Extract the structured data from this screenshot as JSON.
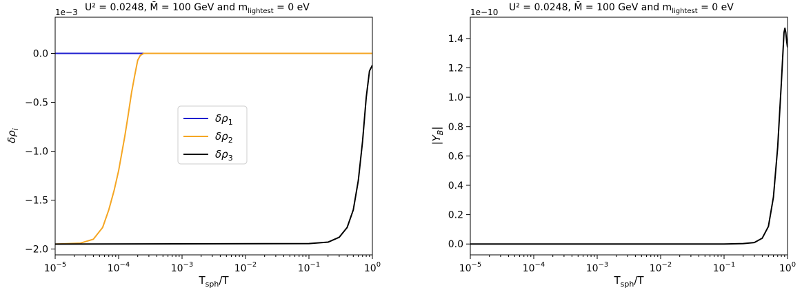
{
  "chart_data": [
    {
      "type": "line",
      "title_prefix": "U² = 0.0248, M̄ = 100 GeV and m",
      "title_sub": "lightest",
      "title_suffix": " = 0 eV",
      "xlabel_main": "T",
      "xlabel_sub": "sph",
      "xlabel_tail": "/T",
      "ylabel_main": "δρ",
      "ylabel_sub": "i",
      "xscale": "log",
      "xlim": [
        1e-05,
        1
      ],
      "ylim": [
        -2.06,
        0.37
      ],
      "x_ticks": [
        {
          "exp": "−5",
          "base": "10"
        },
        {
          "exp": "−4",
          "base": "10"
        },
        {
          "exp": "−3",
          "base": "10"
        },
        {
          "exp": "−2",
          "base": "10"
        },
        {
          "exp": "−1",
          "base": "10"
        },
        {
          "exp": "0",
          "base": "10"
        }
      ],
      "y_ticks": [
        {
          "value": 0.0,
          "label": "0.0"
        },
        {
          "value": -0.5,
          "label": "−0.5"
        },
        {
          "value": -1.0,
          "label": "−1.0"
        },
        {
          "value": -1.5,
          "label": "−1.5"
        },
        {
          "value": -2.0,
          "label": "−2.0"
        }
      ],
      "y_offset_label": "1e−3",
      "legend": {
        "placement": "center-right"
      },
      "series": [
        {
          "name_main": "δρ",
          "name_sub": "1",
          "color": "#1f1fcf",
          "points": [
            [
              1e-05,
              0.0
            ],
            [
              1,
              0.0
            ]
          ]
        },
        {
          "name_main": "δρ",
          "name_sub": "2",
          "color": "#f5a623",
          "points": [
            [
              1e-05,
              -1.95
            ],
            [
              2.5e-05,
              -1.94
            ],
            [
              4e-05,
              -1.9
            ],
            [
              5.6e-05,
              -1.78
            ],
            [
              7e-05,
              -1.6
            ],
            [
              8.5e-05,
              -1.4
            ],
            [
              0.0001,
              -1.2
            ],
            [
              0.000125,
              -0.85
            ],
            [
              0.00014,
              -0.65
            ],
            [
              0.00016,
              -0.4
            ],
            [
              0.00018,
              -0.22
            ],
            [
              0.0002,
              -0.07
            ],
            [
              0.00022,
              -0.02
            ],
            [
              0.00025,
              0.0
            ],
            [
              1,
              0.0
            ]
          ]
        },
        {
          "name_main": "δρ",
          "name_sub": "3",
          "color": "#000000",
          "points": [
            [
              1e-05,
              -1.95
            ],
            [
              0.1,
              -1.945
            ],
            [
              0.2,
              -1.93
            ],
            [
              0.3,
              -1.88
            ],
            [
              0.4,
              -1.78
            ],
            [
              0.5,
              -1.6
            ],
            [
              0.6,
              -1.3
            ],
            [
              0.7,
              -0.9
            ],
            [
              0.8,
              -0.45
            ],
            [
              0.9,
              -0.18
            ],
            [
              1,
              -0.12
            ]
          ]
        }
      ]
    },
    {
      "type": "line",
      "title_prefix": "U² = 0.0248, M̄ = 100 GeV and m",
      "title_sub": "lightest",
      "title_suffix": " = 0 eV",
      "xlabel_main": "T",
      "xlabel_sub": "sph",
      "xlabel_tail": "/T",
      "ylabel_main": "|Y",
      "ylabel_sub": "B",
      "ylabel_tail": "|",
      "xscale": "log",
      "xlim": [
        1e-05,
        1
      ],
      "ylim": [
        -0.074,
        1.545
      ],
      "x_ticks": [
        {
          "exp": "−5",
          "base": "10"
        },
        {
          "exp": "−4",
          "base": "10"
        },
        {
          "exp": "−3",
          "base": "10"
        },
        {
          "exp": "−2",
          "base": "10"
        },
        {
          "exp": "−1",
          "base": "10"
        },
        {
          "exp": "0",
          "base": "10"
        }
      ],
      "y_ticks": [
        {
          "value": 0.0,
          "label": "0.0"
        },
        {
          "value": 0.2,
          "label": "0.2"
        },
        {
          "value": 0.4,
          "label": "0.4"
        },
        {
          "value": 0.6,
          "label": "0.6"
        },
        {
          "value": 0.8,
          "label": "0.8"
        },
        {
          "value": 1.0,
          "label": "1.0"
        },
        {
          "value": 1.2,
          "label": "1.2"
        },
        {
          "value": 1.4,
          "label": "1.4"
        }
      ],
      "y_offset_label": "1e−10",
      "series": [
        {
          "color": "#000000",
          "points": [
            [
              1e-05,
              0.0
            ],
            [
              0.1,
              0.0
            ],
            [
              0.2,
              0.003
            ],
            [
              0.3,
              0.01
            ],
            [
              0.4,
              0.04
            ],
            [
              0.5,
              0.12
            ],
            [
              0.6,
              0.32
            ],
            [
              0.7,
              0.66
            ],
            [
              0.8,
              1.1
            ],
            [
              0.88,
              1.44
            ],
            [
              0.91,
              1.47
            ],
            [
              0.94,
              1.44
            ],
            [
              0.97,
              1.38
            ],
            [
              1,
              1.34
            ]
          ]
        }
      ]
    }
  ]
}
